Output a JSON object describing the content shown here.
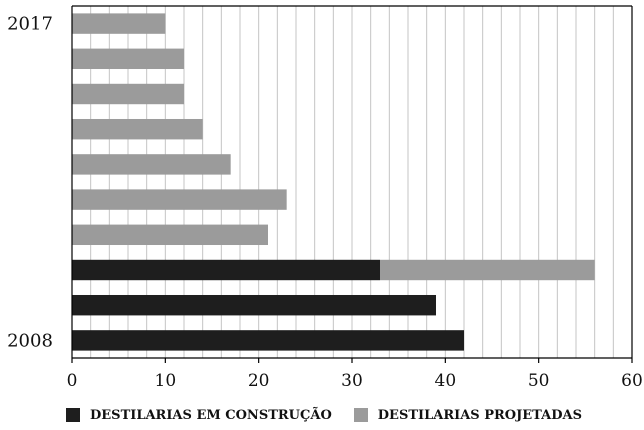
{
  "chart_data": {
    "type": "bar",
    "orientation": "horizontal",
    "stacked": true,
    "categories": [
      "2017",
      "",
      "",
      "",
      "",
      "",
      "",
      "",
      "",
      "2008"
    ],
    "series": [
      {
        "name": "DESTILARIAS EM CONSTRUÇÃO",
        "color": "#1e1e1e",
        "values": [
          0,
          0,
          0,
          0,
          0,
          0,
          0,
          33,
          39,
          42
        ]
      },
      {
        "name": "DESTILARIAS PROJETADAS",
        "color": "#9b9b9b",
        "values": [
          10,
          12,
          12,
          14,
          17,
          23,
          21,
          23,
          0,
          0
        ]
      }
    ],
    "xlim": [
      0,
      60
    ],
    "xticks": [
      0,
      10,
      20,
      30,
      40,
      50,
      60
    ],
    "minor_gridline_step": 2,
    "grid": true,
    "legend_position": "bottom"
  }
}
